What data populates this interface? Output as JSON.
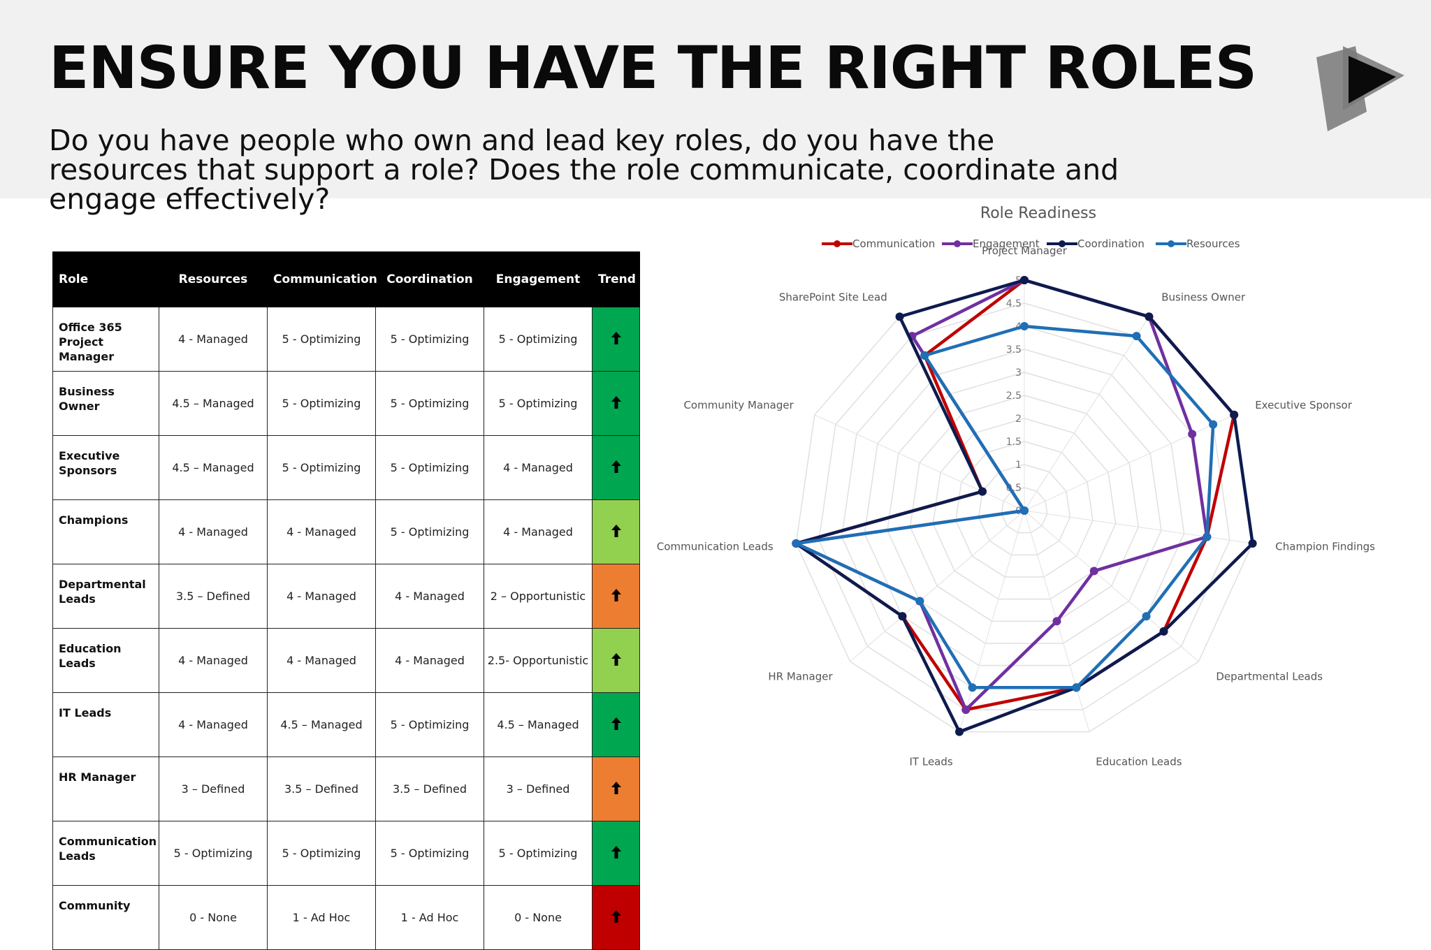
{
  "slide": {
    "title": "ENSURE YOU HAVE THE RIGHT ROLES",
    "subtitle": "Do you have people who own and lead key roles, do you have the resources that support a role? Does the role communicate, coordinate and engage effectively?",
    "logo_icon": "play-arrow-logo-icon"
  },
  "table": {
    "headers": {
      "role": "Role",
      "resources": "Resources",
      "communication": "Communication",
      "coordination": "Coordination",
      "engagement": "Engagement",
      "trend": "Trend"
    },
    "trend_colors": {
      "dark_green": "#00a650",
      "light_green": "#92d050",
      "orange": "#ed7d31",
      "red": "#c00000"
    },
    "rows": [
      {
        "role": "Office 365 Project Manager",
        "resources": "4 - Managed",
        "communication": "5 - Optimizing",
        "coordination": "5 - Optimizing",
        "engagement": "5 - Optimizing",
        "trend": "dark_green",
        "trend_icon": "up-arrow-icon"
      },
      {
        "role": "Business Owner",
        "resources": "4.5 – Managed",
        "communication": "5 - Optimizing",
        "coordination": "5 - Optimizing",
        "engagement": "5 - Optimizing",
        "trend": "dark_green",
        "trend_icon": "up-arrow-icon"
      },
      {
        "role": "Executive Sponsors",
        "resources": "4.5 – Managed",
        "communication": "5 - Optimizing",
        "coordination": "5 - Optimizing",
        "engagement": "4 - Managed",
        "trend": "dark_green",
        "trend_icon": "up-arrow-icon"
      },
      {
        "role": "Champions",
        "resources": "4 - Managed",
        "communication": "4 - Managed",
        "coordination": "5 - Optimizing",
        "engagement": "4 - Managed",
        "trend": "light_green",
        "trend_icon": "up-arrow-icon"
      },
      {
        "role": "Departmental Leads",
        "resources": "3.5 – Defined",
        "communication": "4 - Managed",
        "coordination": "4 - Managed",
        "engagement": "2 – Opportunistic",
        "trend": "orange",
        "trend_icon": "up-arrow-icon"
      },
      {
        "role": "Education Leads",
        "resources": "4 - Managed",
        "communication": "4 - Managed",
        "coordination": "4 - Managed",
        "engagement": "2.5- Opportunistic",
        "trend": "light_green",
        "trend_icon": "up-arrow-icon"
      },
      {
        "role": "IT Leads",
        "resources": "4 - Managed",
        "communication": "4.5 – Managed",
        "coordination": "5 - Optimizing",
        "engagement": "4.5 – Managed",
        "trend": "dark_green",
        "trend_icon": "up-arrow-icon"
      },
      {
        "role": "HR Manager",
        "resources": "3 – Defined",
        "communication": "3.5 – Defined",
        "coordination": "3.5 – Defined",
        "engagement": "3 – Defined",
        "trend": "orange",
        "trend_icon": "up-arrow-icon"
      },
      {
        "role": "Communication Leads",
        "resources": "5 - Optimizing",
        "communication": "5 - Optimizing",
        "coordination": "5 - Optimizing",
        "engagement": "5 - Optimizing",
        "trend": "dark_green",
        "trend_icon": "up-arrow-icon"
      },
      {
        "role": "Community",
        "resources": "0 - None",
        "communication": "1 - Ad Hoc",
        "coordination": "1 - Ad Hoc",
        "engagement": "0 - None",
        "trend": "red",
        "trend_icon": "up-arrow-icon"
      }
    ]
  },
  "chart_data": {
    "type": "radar",
    "title": "Role Readiness",
    "categories": [
      "Project Manager",
      "Business Owner",
      "Executive Sponsor",
      "Champion Findings",
      "Departmental Leads",
      "Education Leads",
      "IT Leads",
      "HR Manager",
      "Communication Leads",
      "Community Manager",
      "SharePoint Site Lead"
    ],
    "rlim": [
      0,
      5
    ],
    "r_ticks": [
      "0",
      "0.5",
      "1",
      "1.5",
      "2",
      "2.5",
      "3",
      "3.5",
      "4",
      "4.5",
      "5"
    ],
    "grid": true,
    "legend_position": "top",
    "series": [
      {
        "name": "Communication",
        "color": "#c00000",
        "values": [
          5,
          5,
          5,
          4,
          4,
          4,
          4.5,
          3.5,
          5,
          1,
          4
        ]
      },
      {
        "name": "Engagement",
        "color": "#7030a0",
        "values": [
          5,
          5,
          4,
          4,
          2,
          2.5,
          4.5,
          3,
          5,
          0,
          4.5
        ]
      },
      {
        "name": "Coordination",
        "color": "#0d1b4f",
        "values": [
          5,
          5,
          5,
          5,
          4,
          4,
          5,
          3.5,
          5,
          1,
          5
        ]
      },
      {
        "name": "Resources",
        "color": "#1f6fb5",
        "values": [
          4,
          4.5,
          4.5,
          4,
          3.5,
          4,
          4,
          3,
          5,
          0,
          4
        ]
      }
    ]
  }
}
